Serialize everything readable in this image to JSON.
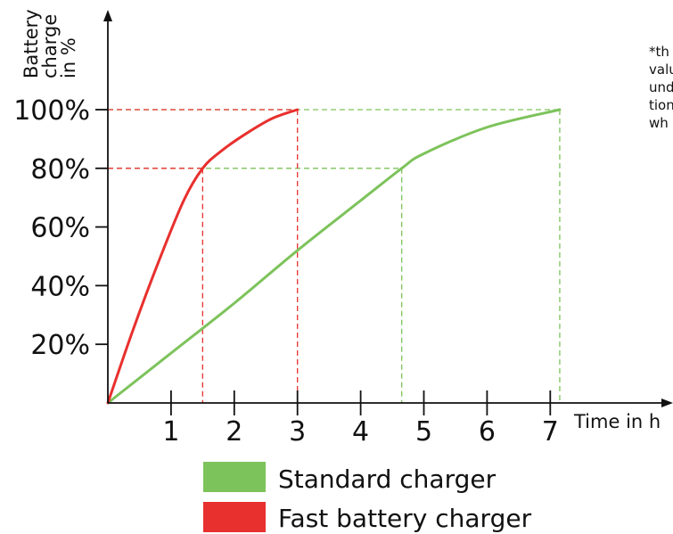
{
  "chart_data": {
    "type": "line",
    "title": "",
    "xlabel": "Time in h",
    "ylabel_lines": [
      "Battery",
      "charge",
      "in %"
    ],
    "xlim": [
      0,
      8.8
    ],
    "ylim": [
      0,
      100
    ],
    "x_ticks": [
      1,
      2,
      3,
      4,
      5,
      6,
      7
    ],
    "y_ticks": [
      20,
      40,
      60,
      80,
      100
    ],
    "y_tick_labels": [
      "20%",
      "40%",
      "60%",
      "80%",
      "100%"
    ],
    "grid": false,
    "legend_position": "bottom",
    "note_lines": [
      "*th",
      "valu",
      "und",
      "tion",
      "wh"
    ],
    "series": [
      {
        "name": "Standard charger",
        "color": "#7dc35b",
        "points": [
          [
            0,
            0
          ],
          [
            1,
            17
          ],
          [
            2,
            34
          ],
          [
            3,
            52
          ],
          [
            4,
            69
          ],
          [
            4.65,
            80
          ],
          [
            5,
            85
          ],
          [
            6,
            94
          ],
          [
            7.15,
            100
          ]
        ],
        "markers": [
          {
            "x": 4.65,
            "y": 80
          },
          {
            "x": 7.15,
            "y": 100
          }
        ]
      },
      {
        "name": "Fast battery charger",
        "color": "#e8302e",
        "points": [
          [
            0,
            0
          ],
          [
            0.4,
            25
          ],
          [
            0.8,
            48
          ],
          [
            1.2,
            69
          ],
          [
            1.5,
            80
          ],
          [
            1.8,
            86
          ],
          [
            2.2,
            92
          ],
          [
            2.6,
            97
          ],
          [
            3,
            100
          ]
        ],
        "markers": [
          {
            "x": 1.5,
            "y": 80
          },
          {
            "x": 3,
            "y": 100
          }
        ]
      }
    ]
  }
}
